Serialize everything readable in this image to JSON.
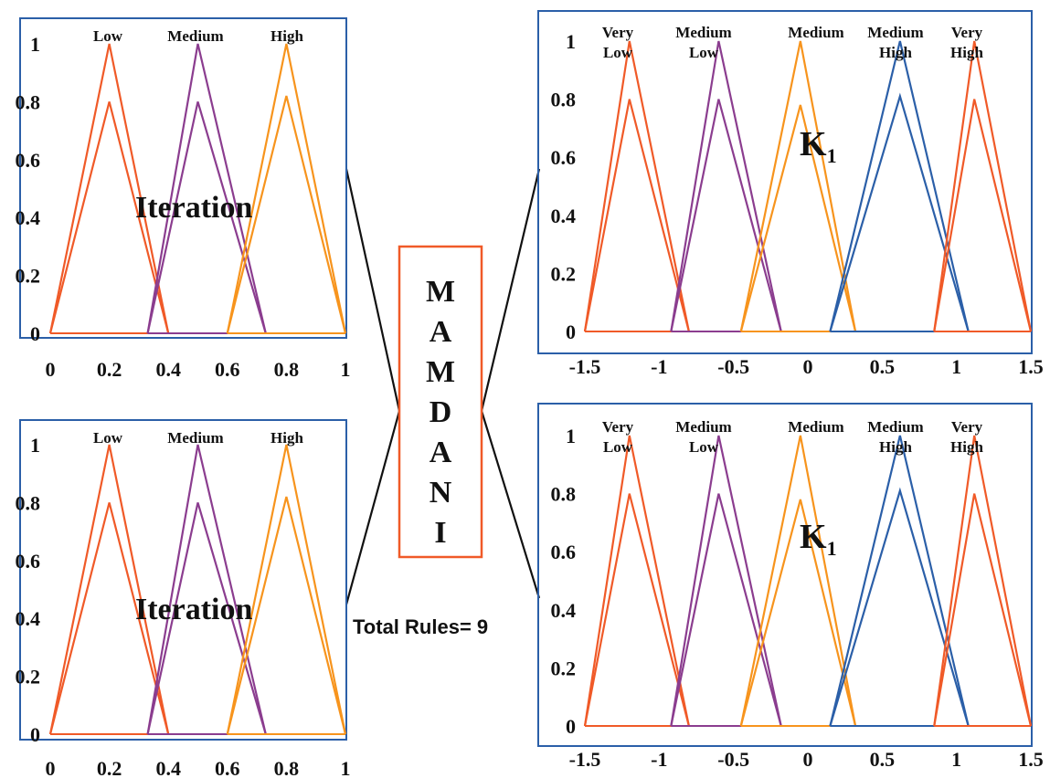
{
  "colors": {
    "orange_red": "#f05a28",
    "orange": "#f7941d",
    "purple": "#8b3d8f",
    "blue": "#2b5fa8",
    "frame": "#2b5fa8",
    "mamdani_border": "#f05a28"
  },
  "mamdani": {
    "letters": [
      "M",
      "A",
      "M",
      "D",
      "A",
      "N",
      "I"
    ]
  },
  "total_rules": "Total Rules= 9",
  "chart_data": [
    {
      "type": "line",
      "annotation": "Iteration",
      "xlim": [
        0,
        1
      ],
      "ylim": [
        0,
        1
      ],
      "x_ticks": [
        "0",
        "0.2",
        "0.4",
        "0.6",
        "0.8",
        "1"
      ],
      "y_ticks": [
        "0",
        "0.2",
        "0.4",
        "0.6",
        "0.8",
        "1"
      ],
      "series": [
        {
          "name": "Low",
          "color": "orange_red",
          "upper": [
            0,
            0.2,
            0.4,
            1
          ],
          "lower": [
            0,
            0.2,
            0.4,
            0.8
          ]
        },
        {
          "name": "Medium",
          "color": "purple",
          "upper": [
            0.33,
            0.5,
            0.73,
            1
          ],
          "lower": [
            0.33,
            0.5,
            0.73,
            0.8
          ]
        },
        {
          "name": "High",
          "color": "orange",
          "upper": [
            0.6,
            0.8,
            1.0,
            1
          ],
          "lower": [
            0.6,
            0.8,
            1.0,
            0.82
          ]
        }
      ]
    },
    {
      "type": "line",
      "annotation": "Iteration",
      "xlim": [
        0,
        1
      ],
      "ylim": [
        0,
        1
      ],
      "x_ticks": [
        "0",
        "0.2",
        "0.4",
        "0.6",
        "0.8",
        "1"
      ],
      "y_ticks": [
        "0",
        "0.2",
        "0.4",
        "0.6",
        "0.8",
        "1"
      ],
      "series": [
        {
          "name": "Low",
          "color": "orange_red",
          "upper": [
            0,
            0.2,
            0.4,
            1
          ],
          "lower": [
            0,
            0.2,
            0.4,
            0.8
          ]
        },
        {
          "name": "Medium",
          "color": "purple",
          "upper": [
            0.33,
            0.5,
            0.73,
            1
          ],
          "lower": [
            0.33,
            0.5,
            0.73,
            0.8
          ]
        },
        {
          "name": "High",
          "color": "orange",
          "upper": [
            0.6,
            0.8,
            1.0,
            1
          ],
          "lower": [
            0.6,
            0.8,
            1.0,
            0.82
          ]
        }
      ]
    },
    {
      "type": "line",
      "annotation": "K",
      "annotation_sub": "1",
      "xlim": [
        -1.5,
        1.5
      ],
      "ylim": [
        0,
        1
      ],
      "x_ticks": [
        "-1.5",
        "-1",
        "-0.5",
        "0",
        "0.5",
        "1",
        "1.5"
      ],
      "y_ticks": [
        "0",
        "0.2",
        "0.4",
        "0.6",
        "0.8",
        "1"
      ],
      "series": [
        {
          "name": "Very Low",
          "label_lines": [
            "Very",
            "Low"
          ],
          "color": "orange_red",
          "upper": [
            -1.5,
            -1.2,
            -0.8,
            1
          ],
          "lower": [
            -1.5,
            -1.2,
            -0.8,
            0.8
          ]
        },
        {
          "name": "Medium Low",
          "label_lines": [
            "Medium",
            "Low"
          ],
          "color": "purple",
          "upper": [
            -0.92,
            -0.6,
            -0.18,
            1
          ],
          "lower": [
            -0.92,
            -0.6,
            -0.18,
            0.8
          ]
        },
        {
          "name": "Medium",
          "label_lines": [
            "Medium"
          ],
          "color": "orange",
          "upper": [
            -0.45,
            -0.05,
            0.32,
            1
          ],
          "lower": [
            -0.45,
            -0.05,
            0.32,
            0.78
          ]
        },
        {
          "name": "Medium High",
          "label_lines": [
            "Medium",
            "High"
          ],
          "color": "blue",
          "upper": [
            0.15,
            0.62,
            1.08,
            1
          ],
          "lower": [
            0.15,
            0.62,
            1.08,
            0.81
          ]
        },
        {
          "name": "Very High",
          "label_lines": [
            "Very",
            "High"
          ],
          "color": "orange_red",
          "upper": [
            0.85,
            1.12,
            1.5,
            1
          ],
          "lower": [
            0.85,
            1.12,
            1.5,
            0.8
          ]
        }
      ]
    },
    {
      "type": "line",
      "annotation": "K",
      "annotation_sub": "1",
      "xlim": [
        -1.5,
        1.5
      ],
      "ylim": [
        0,
        1
      ],
      "x_ticks": [
        "-1.5",
        "-1",
        "-0.5",
        "0",
        "0.5",
        "1",
        "1.5"
      ],
      "y_ticks": [
        "0",
        "0.2",
        "0.4",
        "0.6",
        "0.8",
        "1"
      ],
      "series": [
        {
          "name": "Very Low",
          "label_lines": [
            "Very",
            "Low"
          ],
          "color": "orange_red",
          "upper": [
            -1.5,
            -1.2,
            -0.8,
            1
          ],
          "lower": [
            -1.5,
            -1.2,
            -0.8,
            0.8
          ]
        },
        {
          "name": "Medium Low",
          "label_lines": [
            "Medium",
            "Low"
          ],
          "color": "purple",
          "upper": [
            -0.92,
            -0.6,
            -0.18,
            1
          ],
          "lower": [
            -0.92,
            -0.6,
            -0.18,
            0.8
          ]
        },
        {
          "name": "Medium",
          "label_lines": [
            "Medium"
          ],
          "color": "orange",
          "upper": [
            -0.45,
            -0.05,
            0.32,
            1
          ],
          "lower": [
            -0.45,
            -0.05,
            0.32,
            0.78
          ]
        },
        {
          "name": "Medium High",
          "label_lines": [
            "Medium",
            "High"
          ],
          "color": "blue",
          "upper": [
            0.15,
            0.62,
            1.08,
            1
          ],
          "lower": [
            0.15,
            0.62,
            1.08,
            0.81
          ]
        },
        {
          "name": "Very High",
          "label_lines": [
            "Very",
            "High"
          ],
          "color": "orange_red",
          "upper": [
            0.85,
            1.12,
            1.5,
            1
          ],
          "lower": [
            0.85,
            1.12,
            1.5,
            0.8
          ]
        }
      ]
    }
  ]
}
